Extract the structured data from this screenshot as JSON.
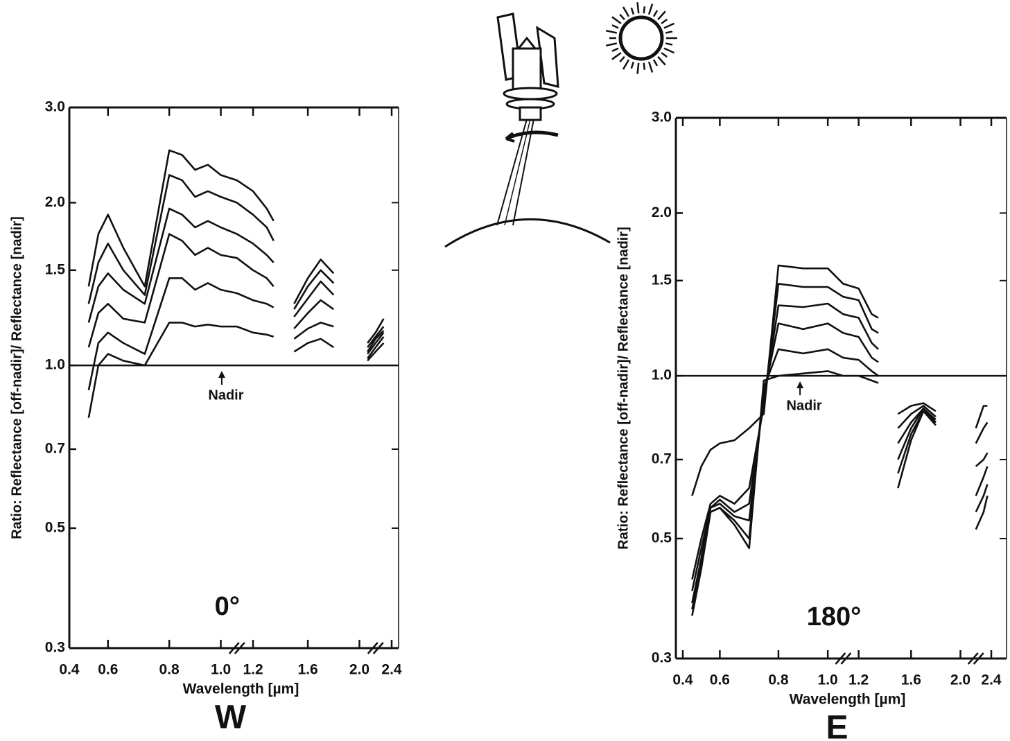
{
  "chart_data": [
    {
      "type": "line",
      "ylabel": "Ratio: Reflectance [off-nadir]/ Reflectance [nadir]",
      "xlabel": "Wavelength [µm]",
      "angle_label": "0°",
      "direction_label": "W",
      "nadir_label": "Nadir",
      "reference_line": 1,
      "log_y": true,
      "color": "#111111",
      "ylim": [
        0.3,
        3
      ],
      "yticks": [
        0.3,
        0.5,
        0.7,
        {
          "value": 1,
          "label": "1.0"
        },
        1.5,
        {
          "value": 2,
          "label": "2.0"
        },
        {
          "value": 3,
          "label": "3.0"
        }
      ],
      "xlim": [
        0.4,
        2.4
      ],
      "xticks": [
        0.4,
        0.6,
        0.8,
        {
          "value": 1,
          "label": "1.0"
        },
        1.2,
        1.6,
        {
          "value": 2,
          "label": "2.0"
        },
        2.4
      ],
      "x": [
        0.5,
        0.55,
        0.6,
        0.65,
        0.72,
        0.8,
        0.85,
        0.9,
        0.95,
        1.0,
        1.1,
        1.2,
        1.3,
        1.35,
        1.4,
        1.5,
        1.6,
        1.7,
        1.8,
        1.95,
        2.1,
        2.2,
        2.3
      ],
      "series": [
        {
          "values": [
            1.4,
            1.75,
            1.9,
            1.65,
            1.4,
            2.5,
            2.45,
            2.3,
            2.35,
            2.25,
            2.2,
            2.1,
            1.95,
            1.85,
            null,
            1.3,
            1.45,
            1.57,
            1.48,
            null,
            1.1,
            1.15,
            1.22
          ]
        },
        {
          "values": [
            1.3,
            1.55,
            1.68,
            1.5,
            1.35,
            2.25,
            2.2,
            2.05,
            2.1,
            2.05,
            2.0,
            1.9,
            1.8,
            1.7,
            null,
            1.27,
            1.4,
            1.5,
            1.42,
            null,
            1.08,
            1.13,
            1.18
          ]
        },
        {
          "values": [
            1.2,
            1.4,
            1.48,
            1.38,
            1.3,
            1.95,
            1.9,
            1.8,
            1.85,
            1.8,
            1.75,
            1.68,
            1.6,
            1.55,
            null,
            1.23,
            1.33,
            1.43,
            1.35,
            null,
            1.06,
            1.12,
            1.16
          ]
        },
        {
          "values": [
            1.08,
            1.25,
            1.3,
            1.22,
            1.2,
            1.75,
            1.7,
            1.6,
            1.65,
            1.6,
            1.58,
            1.5,
            1.45,
            1.4,
            null,
            1.17,
            1.25,
            1.32,
            1.27,
            null,
            1.05,
            1.1,
            1.15
          ]
        },
        {
          "values": [
            0.9,
            1.1,
            1.15,
            1.1,
            1.05,
            1.45,
            1.45,
            1.38,
            1.42,
            1.38,
            1.36,
            1.32,
            1.3,
            1.28,
            null,
            1.12,
            1.17,
            1.2,
            1.18,
            null,
            1.03,
            1.08,
            1.13
          ]
        },
        {
          "values": [
            0.8,
            1.0,
            1.05,
            1.02,
            1.0,
            1.2,
            1.2,
            1.18,
            1.19,
            1.18,
            1.18,
            1.15,
            1.14,
            1.13,
            null,
            1.06,
            1.1,
            1.12,
            1.08,
            null,
            1.02,
            1.06,
            1.1
          ]
        }
      ]
    },
    {
      "type": "line",
      "ylabel": "Ratio: Reflectance [off-nadir]/ Reflectance [nadir]",
      "xlabel": "Wavelength [µm]",
      "angle_label": "180°",
      "direction_label": "E",
      "nadir_label": "Nadir",
      "reference_line": 1,
      "log_y": true,
      "color": "#111111",
      "ylim": [
        0.3,
        3
      ],
      "yticks": [
        0.3,
        0.5,
        0.7,
        {
          "value": 1,
          "label": "1.0"
        },
        1.5,
        {
          "value": 2,
          "label": "2.0"
        },
        {
          "value": 3,
          "label": "3.0"
        }
      ],
      "xlim": [
        0.4,
        2.4
      ],
      "xticks": [
        0.4,
        0.6,
        0.8,
        {
          "value": 1,
          "label": "1.0"
        },
        1.2,
        1.6,
        {
          "value": 2,
          "label": "2.0"
        },
        2.4
      ],
      "x": [
        0.45,
        0.5,
        0.55,
        0.6,
        0.65,
        0.7,
        0.75,
        0.8,
        0.9,
        1.0,
        1.1,
        1.2,
        1.3,
        1.35,
        1.4,
        1.5,
        1.6,
        1.7,
        1.8,
        1.95,
        2.2,
        2.3,
        2.35
      ],
      "series": [
        {
          "values": [
            0.6,
            0.68,
            0.73,
            0.75,
            0.76,
            0.8,
            0.85,
            1.6,
            1.58,
            1.58,
            1.48,
            1.45,
            1.3,
            1.28,
            null,
            0.85,
            0.88,
            0.89,
            0.86,
            null,
            0.8,
            0.88,
            0.88
          ]
        },
        {
          "values": [
            0.42,
            0.5,
            0.58,
            0.6,
            0.58,
            0.62,
            0.88,
            1.48,
            1.46,
            1.46,
            1.4,
            1.38,
            1.22,
            1.2,
            null,
            0.8,
            0.85,
            0.88,
            0.84,
            null,
            0.75,
            0.8,
            0.82
          ]
        },
        {
          "values": [
            0.4,
            0.48,
            0.57,
            0.59,
            0.56,
            0.58,
            0.9,
            1.35,
            1.34,
            1.36,
            1.3,
            1.28,
            1.15,
            1.12,
            null,
            0.75,
            0.82,
            0.87,
            0.83,
            null,
            0.68,
            0.7,
            0.72
          ]
        },
        {
          "values": [
            0.38,
            0.46,
            0.57,
            0.58,
            0.55,
            0.54,
            0.92,
            1.25,
            1.22,
            1.25,
            1.2,
            1.18,
            1.08,
            1.06,
            null,
            0.7,
            0.8,
            0.87,
            0.82,
            null,
            0.6,
            0.65,
            0.68
          ]
        },
        {
          "values": [
            0.37,
            0.45,
            0.56,
            0.57,
            0.54,
            0.5,
            0.95,
            1.12,
            1.1,
            1.12,
            1.08,
            1.07,
            1.02,
            1.0,
            null,
            0.66,
            0.78,
            0.86,
            0.82,
            null,
            0.56,
            0.6,
            0.63
          ]
        },
        {
          "values": [
            0.36,
            0.44,
            0.56,
            0.57,
            0.53,
            0.48,
            0.98,
            1.0,
            1.01,
            1.02,
            1.0,
            1.0,
            0.98,
            0.97,
            null,
            0.62,
            0.76,
            0.86,
            0.81,
            null,
            0.52,
            0.56,
            0.6
          ]
        }
      ]
    }
  ]
}
